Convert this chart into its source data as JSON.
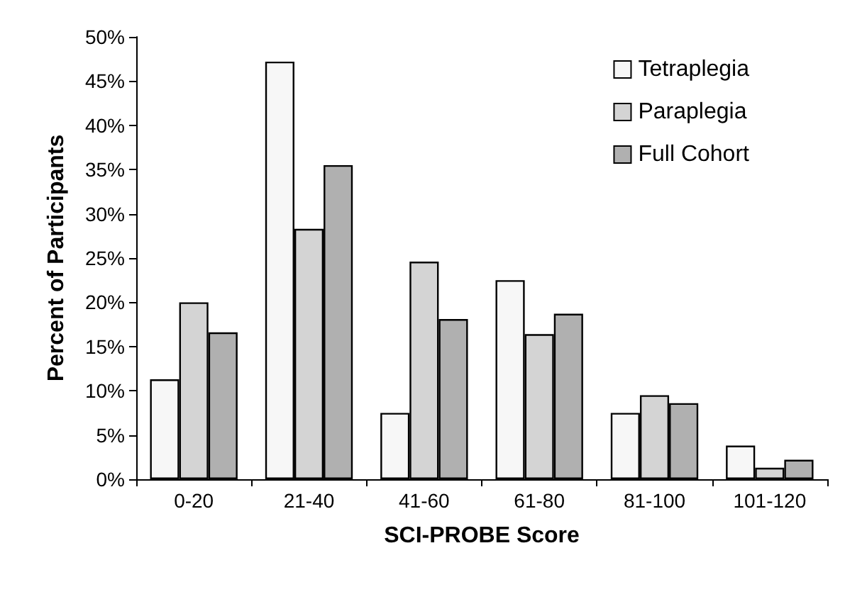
{
  "chart_data": {
    "type": "bar",
    "xlabel": "SCI-PROBE Score",
    "ylabel": "Percent of Participants",
    "categories": [
      "0-20",
      "21-40",
      "41-60",
      "61-80",
      "81-100",
      "101-120"
    ],
    "series": [
      {
        "name": "Tetraplegia",
        "color": "#f7f7f7",
        "values": [
          11.3,
          47.2,
          7.5,
          22.5,
          7.5,
          3.8
        ]
      },
      {
        "name": "Paraplegia",
        "color": "#d4d4d4",
        "values": [
          20.0,
          28.3,
          24.6,
          16.4,
          9.5,
          1.3
        ]
      },
      {
        "name": "Full Cohort",
        "color": "#b0b0b0",
        "values": [
          16.6,
          35.5,
          18.1,
          18.7,
          8.6,
          2.2
        ]
      }
    ],
    "ylim": [
      0,
      50
    ],
    "yticks": [
      {
        "value": 0,
        "label": "0%"
      },
      {
        "value": 5,
        "label": "5%"
      },
      {
        "value": 10,
        "label": "10%"
      },
      {
        "value": 15,
        "label": "15%"
      },
      {
        "value": 20,
        "label": "20%"
      },
      {
        "value": 25,
        "label": "25%"
      },
      {
        "value": 30,
        "label": "30%"
      },
      {
        "value": 35,
        "label": "35%"
      },
      {
        "value": 40,
        "label": "40%"
      },
      {
        "value": 45,
        "label": "45%"
      },
      {
        "value": 50,
        "label": "50%"
      }
    ],
    "grid": false,
    "legend": "top right"
  }
}
